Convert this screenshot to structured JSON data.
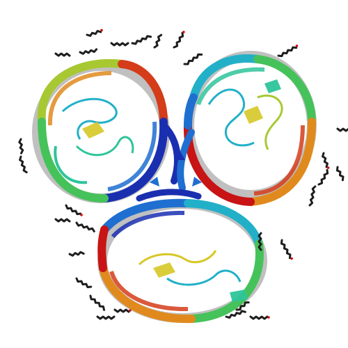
{
  "scene": {
    "subject": "protein-trimer-ribbon-structure",
    "background_color": "#ffffff",
    "palette": [
      "#1a2fb0",
      "#1f6fd0",
      "#22b0c8",
      "#2ec49a",
      "#46c25a",
      "#a8c832",
      "#d6c826",
      "#e08a1e",
      "#d43c1a",
      "#c81414",
      "#8c8c8c"
    ],
    "ligand_color": "#1e1e1e",
    "ligand_accent": "#d01010",
    "style": "rainbow cartoon, beta barrels viewed along three-fold axis"
  }
}
